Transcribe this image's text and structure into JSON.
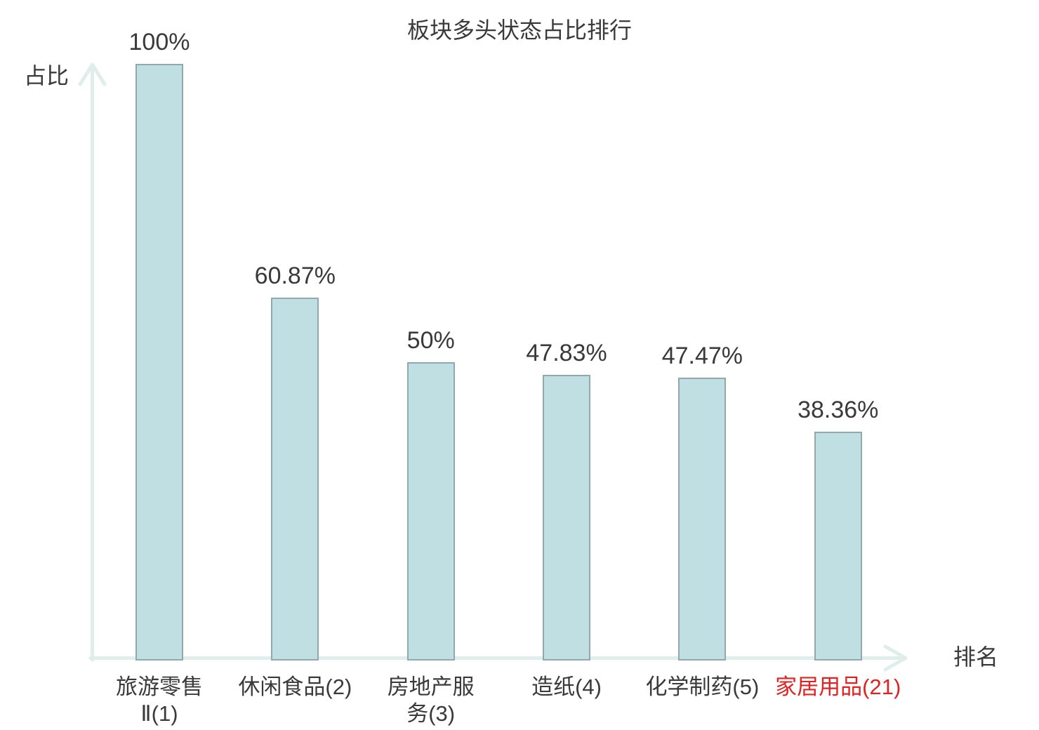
{
  "chart_data": {
    "type": "bar",
    "title": "板块多头状态占比排行",
    "ylabel": "占比",
    "xlabel": "排名",
    "categories": [
      "旅游零售Ⅱ(1)",
      "休闲食品(2)",
      "房地产服务(3)",
      "造纸(4)",
      "化学制药(5)",
      "家居用品(21)"
    ],
    "category_lines": [
      [
        "旅游零售",
        "Ⅱ(1)"
      ],
      [
        "休闲食品(2)"
      ],
      [
        "房地产服",
        "务(3)"
      ],
      [
        "造纸(4)"
      ],
      [
        "化学制药(5)"
      ],
      [
        "家居用品(21)"
      ]
    ],
    "values": [
      100,
      60.87,
      50,
      47.83,
      47.47,
      38.36
    ],
    "value_labels": [
      "100%",
      "60.87%",
      "50%",
      "47.83%",
      "47.47%",
      "38.36%"
    ],
    "highlighted_category_index": 5,
    "ylim": [
      0,
      100
    ],
    "grid": false,
    "legend": false,
    "colors": {
      "background": "#ffffff",
      "bar_fill": "#bfdfe2",
      "bar_border": "#90a9ac",
      "axis": "#dfeeeb",
      "text": "#3a3a3a",
      "highlight_text": "#e02222"
    }
  }
}
